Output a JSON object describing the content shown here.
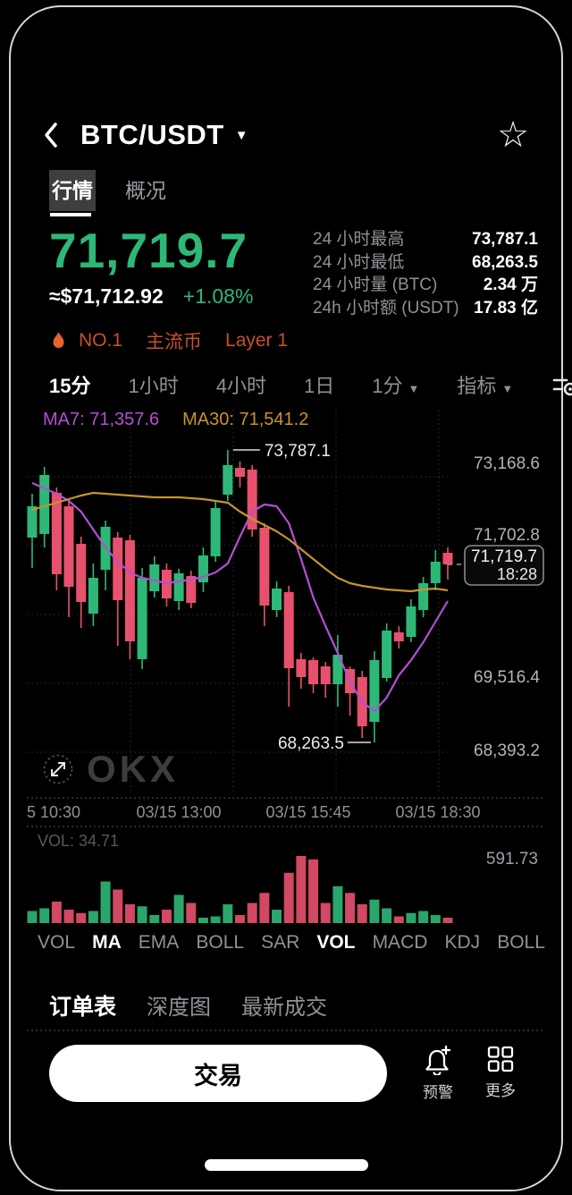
{
  "icons": {
    "caret_down": "▼",
    "star": "☆"
  },
  "header": {
    "title": "BTC/USDT"
  },
  "top_tabs": [
    {
      "label": "行情"
    },
    {
      "label": "概况"
    }
  ],
  "price": {
    "last": "71,719.7",
    "fiat": "≈$71,712.92",
    "change": "+1.08%"
  },
  "badges": {
    "rank": "NO.1",
    "tag1": "主流币",
    "tag2": "Layer 1"
  },
  "stats": [
    {
      "label": "24 小时最高",
      "value": "73,787.1"
    },
    {
      "label": "24 小时最低",
      "value": "68,263.5"
    },
    {
      "label": "24 小时量 (BTC)",
      "value": "2.34 万"
    },
    {
      "label": "24h 小时额 (USDT)",
      "value": "17.83 亿"
    }
  ],
  "timeframes": [
    {
      "label": "15分"
    },
    {
      "label": "1小时"
    },
    {
      "label": "4小时"
    },
    {
      "label": "1日"
    },
    {
      "label": "1分"
    },
    {
      "label": "指标"
    }
  ],
  "watermark_text": "OKX",
  "indicator_tabs": [
    {
      "label": "VOL"
    },
    {
      "label": "MA"
    },
    {
      "label": "EMA"
    },
    {
      "label": "BOLL"
    },
    {
      "label": "SAR"
    },
    {
      "label": "VOL"
    },
    {
      "label": "MACD"
    },
    {
      "label": "KDJ"
    },
    {
      "label": "BOLL"
    }
  ],
  "bottom_tabs": [
    {
      "label": "订单表"
    },
    {
      "label": "深度图"
    },
    {
      "label": "最新成交"
    }
  ],
  "actions": {
    "trade": "交易",
    "alert": "预警",
    "more": "更多"
  },
  "chart_data": {
    "type": "candlestick",
    "interval": "15m",
    "grid": true,
    "legend_position": "top-left",
    "ma_legend": [
      {
        "name": "MA7",
        "value": "71,357.6",
        "color": "#b44fd4"
      },
      {
        "name": "MA30",
        "value": "71,541.2",
        "color": "#c9932d"
      }
    ],
    "colors": {
      "up": "#2eb877",
      "down": "#e8516d"
    },
    "price_domain": [
      67419.6,
      74598.0
    ],
    "y_axis_labels": [
      "73,168.6",
      "71,702.8",
      "69,516.4",
      "68,393.2"
    ],
    "x_axis_labels": [
      "5 10:30",
      "03/15 13:00",
      "03/15 15:45",
      "03/15 18:30"
    ],
    "high_annotation": "73,787.1",
    "low_annotation": "68,263.5",
    "last_price": "71,719.7",
    "last_time": "18:28",
    "candles": [
      [
        72131.9,
        72959.5,
        71557.6,
        72723.0
      ],
      [
        72199.5,
        73466.2,
        71946.1,
        73314.2
      ],
      [
        72976.4,
        73077.7,
        71135.3,
        71439.4
      ],
      [
        72723.0,
        72824.4,
        70628.6,
        71202.9
      ],
      [
        72013.7,
        72148.8,
        70425.9,
        70915.7
      ],
      [
        70696.2,
        71642.1,
        70459.7,
        71371.9
      ],
      [
        71523.9,
        72452.8,
        71135.3,
        72334.6
      ],
      [
        72131.9,
        72233.2,
        70088.1,
        70949.5
      ],
      [
        72081.3,
        72182.6,
        69834.8,
        70172.5
      ],
      [
        69834.8,
        71557.6,
        69649.0,
        71371.9
      ],
      [
        71118.4,
        71777.2,
        71000.2,
        71625.2
      ],
      [
        71523.9,
        71642.1,
        70831.3,
        70983.3
      ],
      [
        70932.6,
        71540.8,
        70763.7,
        71456.3
      ],
      [
        71405.7,
        71507.0,
        70797.5,
        70898.8
      ],
      [
        71287.4,
        71946.1,
        71101.5,
        71794.1
      ],
      [
        71777.2,
        72824.4,
        71675.9,
        72689.3
      ],
      [
        72942.6,
        73787.1,
        72824.4,
        73500.0
      ],
      [
        73449.3,
        73567.5,
        73077.7,
        73280.4
      ],
      [
        73415.6,
        73500.0,
        72148.8,
        72283.9
      ],
      [
        72317.7,
        72402.1,
        70459.7,
        70848.2
      ],
      [
        70763.7,
        71304.3,
        70628.6,
        71169.2
      ],
      [
        71101.5,
        71219.9,
        68939.6,
        69665.9
      ],
      [
        69834.8,
        69953.1,
        69277.5,
        69497.0
      ],
      [
        69818.0,
        69868.6,
        69193.0,
        69361.9
      ],
      [
        69699.7,
        69784.2,
        69108.6,
        69361.9
      ],
      [
        69361.9,
        70290.8,
        68939.6,
        69919.3
      ],
      [
        69649.0,
        69699.7,
        68770.6,
        69193.0
      ],
      [
        69497.0,
        69615.2,
        68348.3,
        68568.1
      ],
      [
        68652.5,
        69986.9,
        68263.5,
        69818.0
      ],
      [
        69480.1,
        70510.4,
        69412.5,
        70375.3
      ],
      [
        70341.5,
        70459.7,
        70037.3,
        70172.5
      ],
      [
        70256.9,
        70966.4,
        70155.6,
        70831.3
      ],
      [
        70763.7,
        71388.7,
        70628.6,
        71270.5
      ],
      [
        71270.5,
        71895.4,
        71135.3,
        71675.9
      ],
      [
        71844.8,
        71946.1,
        71338.0,
        71625.2
      ]
    ],
    "series": [
      {
        "name": "MA7",
        "color": "#b44fd4",
        "values": [
          73162,
          73061,
          72959,
          72824,
          72622,
          72284,
          71946,
          71676,
          71473,
          71372,
          71321,
          71271,
          71304,
          71338,
          71389,
          71473,
          71642,
          72149,
          72622,
          72757,
          72723,
          72402,
          71727,
          71000,
          70460,
          69953,
          69412,
          69024,
          68855,
          69108,
          69531,
          69818,
          70156,
          70544,
          70932
        ]
      },
      {
        "name": "MA30",
        "color": "#c9932d",
        "values": [
          72655,
          72723,
          72790,
          72858,
          72926,
          72976,
          72959,
          72942,
          72926,
          72909,
          72892,
          72892,
          72892,
          72875,
          72858,
          72824,
          72790,
          72622,
          72487,
          72368,
          72250,
          72098,
          71912,
          71727,
          71541,
          71372,
          71271,
          71220,
          71186,
          71152,
          71135,
          71118,
          71152,
          71169,
          71135
        ]
      }
    ],
    "volume": {
      "current_label": "VOL: 34.71",
      "max_label": "591.73",
      "max": 591.73,
      "values": [
        106.5,
        130.2,
        189.4,
        118.3,
        88.8,
        106.5,
        366.9,
        295.9,
        165.7,
        147.9,
        71.0,
        118.3,
        248.5,
        177.5,
        47.3,
        59.2,
        165.7,
        71.0,
        177.5,
        266.3,
        118.3,
        443.8,
        591.7,
        562.1,
        177.5,
        325.5,
        266.3,
        165.7,
        207.1,
        130.2,
        59.2,
        88.8,
        106.5,
        71.0,
        47.3
      ]
    }
  }
}
